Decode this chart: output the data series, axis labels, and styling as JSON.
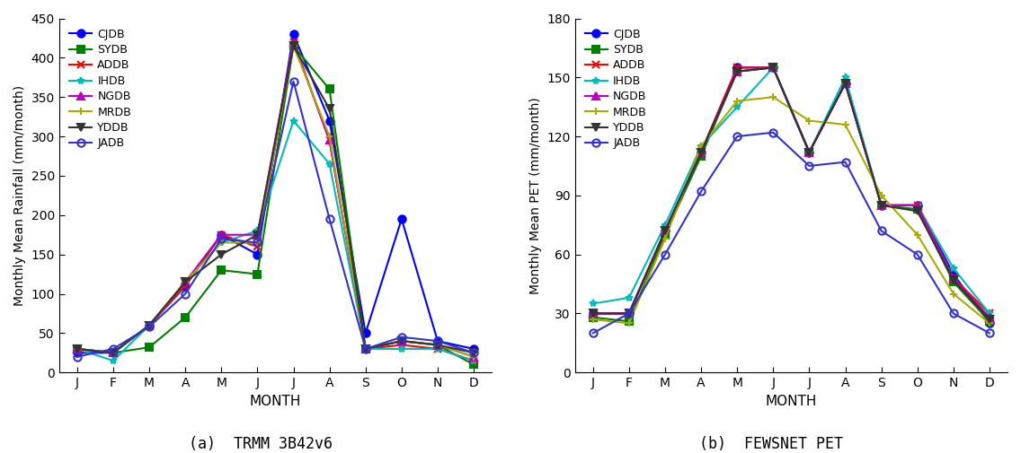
{
  "months": [
    "J",
    "F",
    "M",
    "A",
    "M",
    "J",
    "J",
    "A",
    "S",
    "O",
    "N",
    "D"
  ],
  "series_labels": [
    "CJDB",
    "SYDB",
    "ADDB",
    "IHDB",
    "NGDB",
    "MRDB",
    "YDDB",
    "JADB"
  ],
  "colors": [
    "#0000ff",
    "#007f00",
    "#ff0000",
    "#00bbbb",
    "#bb00bb",
    "#aaaa00",
    "#333333",
    "#3333cc"
  ],
  "markers": [
    "o",
    "s",
    "x",
    "*",
    "^",
    "+",
    "v",
    "o"
  ],
  "marker_filled": [
    true,
    true,
    false,
    false,
    true,
    false,
    true,
    false
  ],
  "precip": {
    "CJDB": [
      25,
      25,
      60,
      110,
      175,
      150,
      430,
      320,
      50,
      195,
      40,
      30
    ],
    "SYDB": [
      30,
      25,
      32,
      70,
      130,
      125,
      415,
      360,
      30,
      40,
      35,
      10
    ],
    "ADDB": [
      30,
      25,
      60,
      110,
      175,
      160,
      420,
      295,
      30,
      35,
      30,
      15
    ],
    "IHDB": [
      30,
      15,
      60,
      115,
      165,
      180,
      320,
      265,
      30,
      30,
      30,
      15
    ],
    "NGDB": [
      30,
      25,
      60,
      115,
      175,
      175,
      420,
      295,
      30,
      40,
      35,
      20
    ],
    "MRDB": [
      30,
      25,
      60,
      115,
      165,
      165,
      415,
      300,
      30,
      40,
      35,
      20
    ],
    "YDDB": [
      30,
      25,
      60,
      115,
      150,
      175,
      415,
      335,
      30,
      40,
      35,
      25
    ],
    "JADB": [
      20,
      30,
      58,
      100,
      170,
      165,
      370,
      195,
      30,
      45,
      40,
      25
    ]
  },
  "pet": {
    "CJDB": [
      30,
      30,
      72,
      112,
      155,
      155,
      112,
      147,
      85,
      85,
      50,
      25
    ],
    "SYDB": [
      28,
      26,
      70,
      110,
      153,
      155,
      112,
      147,
      85,
      83,
      46,
      26
    ],
    "ADDB": [
      30,
      30,
      72,
      112,
      155,
      155,
      112,
      147,
      85,
      85,
      48,
      30
    ],
    "IHDB": [
      35,
      38,
      75,
      115,
      135,
      155,
      112,
      150,
      85,
      85,
      53,
      30
    ],
    "NGDB": [
      30,
      30,
      72,
      112,
      153,
      155,
      112,
      147,
      85,
      85,
      48,
      28
    ],
    "MRDB": [
      27,
      25,
      68,
      115,
      138,
      140,
      128,
      126,
      90,
      70,
      40,
      25
    ],
    "YDDB": [
      30,
      30,
      72,
      112,
      153,
      155,
      112,
      147,
      85,
      82,
      47,
      27
    ],
    "JADB": [
      20,
      30,
      60,
      92,
      120,
      122,
      105,
      107,
      72,
      60,
      30,
      20
    ]
  },
  "precip_ylim": [
    0,
    450
  ],
  "precip_yticks": [
    0,
    50,
    100,
    150,
    200,
    250,
    300,
    350,
    400,
    450
  ],
  "pet_ylim": [
    0,
    180
  ],
  "pet_yticks": [
    0,
    30,
    60,
    90,
    120,
    150,
    180
  ],
  "xlabel": "MONTH",
  "ylabel_left": "Monthly Mean Rainfall (mm/month)",
  "ylabel_right": "Monthly Mean PET (mm/month)",
  "caption_left": "(a)  TRMM 3B42v6",
  "caption_right": "(b)  FEWSNET PET",
  "linewidth": 1.5,
  "markersize": 6
}
